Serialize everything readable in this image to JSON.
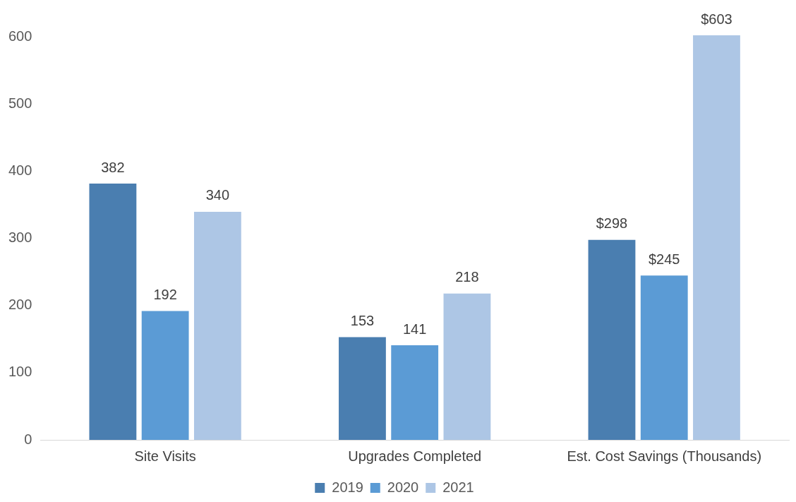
{
  "chart_data": {
    "type": "bar",
    "categories": [
      "Site Visits",
      "Upgrades Completed",
      "Est. Cost Savings (Thousands)"
    ],
    "series": [
      {
        "name": "2019",
        "color": "#4a7eb0",
        "values": [
          382,
          153,
          298
        ],
        "value_labels": [
          "382",
          "153",
          "$298"
        ]
      },
      {
        "name": "2020",
        "color": "#5b9bd5",
        "values": [
          192,
          141,
          245
        ],
        "value_labels": [
          "192",
          "141",
          "$245"
        ]
      },
      {
        "name": "2021",
        "color": "#adc6e5",
        "values": [
          340,
          218,
          603
        ],
        "value_labels": [
          "340",
          "218",
          "$603"
        ]
      }
    ],
    "ylim": [
      0,
      603
    ],
    "yticks": [
      0,
      100,
      200,
      300,
      400,
      500,
      600
    ],
    "grid": false,
    "legend": "bottom"
  }
}
